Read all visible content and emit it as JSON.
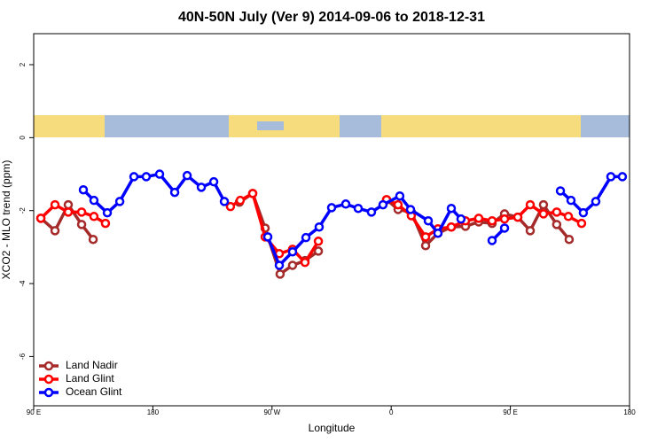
{
  "chart_data": {
    "type": "line",
    "title": "40N-50N July (Ver 9)   2014-09-06 to 2018-12-31",
    "xlabel": "Longitude",
    "ylabel": "XCO2 - MLO trend (ppm)",
    "xlim": [
      90,
      540
    ],
    "ylim": [
      -7.35,
      2.85
    ],
    "xticks": [
      {
        "value": 90,
        "label": "90 E"
      },
      180,
      {
        "value": 270,
        "label": "90 W"
      },
      {
        "value": 360,
        "label": "0"
      },
      {
        "value": 450,
        "label": "90 E"
      },
      {
        "value": 540,
        "label": "180"
      }
    ],
    "yticks": [
      2,
      0,
      -2,
      -4,
      -6
    ],
    "legend": "bottom-left",
    "series": [
      {
        "name": "Land Nadir",
        "color": "#a52a2a",
        "x": [
          95.4,
          106.1,
          116.1,
          126.2,
          134.9,
          null,
          245.3,
          255.4,
          264.8,
          276.1,
          285.5,
          294.9,
          305,
          null,
          356.5,
          365.2,
          375.2,
          386,
          395.3,
          405.4,
          416.1,
          426.1,
          436.2,
          445.6,
          455.6,
          465,
          475,
          485,
          494.4
        ],
        "values": [
          -2.21,
          -2.55,
          -1.84,
          -2.38,
          -2.79,
          null,
          -1.77,
          -1.53,
          -2.48,
          -3.74,
          -3.5,
          -3.37,
          -3.11,
          null,
          -1.7,
          -1.97,
          -2.04,
          -2.96,
          -2.62,
          -2.45,
          -2.43,
          -2.31,
          -2.35,
          -2.09,
          -2.18,
          -2.55,
          -1.84,
          -2.38,
          -2.79
        ]
      },
      {
        "name": "Land Glint",
        "color": "#ff0000",
        "x": [
          95.4,
          106.1,
          116.1,
          126.2,
          135.5,
          144.2,
          null,
          238.6,
          246,
          255.4,
          264.8,
          275.5,
          285.5,
          294.9,
          305,
          null,
          356.5,
          365.2,
          375.2,
          386,
          395.3,
          405.4,
          416.1,
          426.1,
          436.2,
          445.6,
          455.6,
          465,
          475,
          485,
          493.8,
          503.8
        ],
        "values": [
          -2.21,
          -1.84,
          -2.04,
          -2.04,
          -2.16,
          -2.35,
          null,
          -1.89,
          -1.72,
          -1.53,
          -2.72,
          -3.18,
          -3.06,
          -3.42,
          -2.84,
          null,
          -1.7,
          -1.84,
          -2.14,
          -2.72,
          -2.5,
          -2.45,
          -2.28,
          -2.21,
          -2.28,
          -2.23,
          -2.18,
          -1.84,
          -2.09,
          -2.04,
          -2.16,
          -2.35
        ]
      },
      {
        "name": "Ocean Glint",
        "color": "#0000ff",
        "x": [
          127.5,
          135.5,
          145.6,
          155,
          165.7,
          175,
          185.1,
          196.5,
          205.9,
          216.6,
          226,
          234,
          null,
          266.8,
          275.5,
          285.5,
          295.6,
          305.6,
          315,
          325.7,
          335.1,
          345.1,
          353.8,
          366.5,
          374.6,
          388,
          395.3,
          405.4,
          412.7,
          null,
          436.2,
          445.6,
          null,
          487.8,
          495.8,
          505.1,
          514.5,
          525.9,
          534.6
        ],
        "values": [
          -1.43,
          -1.72,
          -2.06,
          -1.75,
          -1.07,
          -1.07,
          -1.0,
          -1.5,
          -1.04,
          -1.36,
          -1.21,
          -1.75,
          null,
          -2.72,
          -3.5,
          -3.13,
          -2.74,
          -2.45,
          -1.92,
          -1.82,
          -1.94,
          -2.04,
          -1.84,
          -1.6,
          -1.97,
          -2.28,
          -2.62,
          -1.94,
          -2.23,
          null,
          -2.82,
          -2.48,
          null,
          -1.46,
          -1.72,
          -2.06,
          -1.75,
          -1.07,
          -1.07
        ]
      }
    ]
  }
}
